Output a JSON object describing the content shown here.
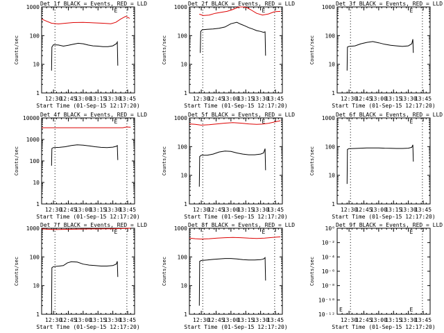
{
  "colors": {
    "events": "#000000",
    "lld": "#dd0000",
    "background": "#ffffff"
  },
  "chart_data": [
    {
      "type": "line",
      "det": "1f",
      "title": "Det 1f BLACK = Events, RED = LLD",
      "xlabel": "Start Time (01-Sep-15 12:17:20)",
      "ylabel": "Counts/sec",
      "x_ticks": [
        "12:30",
        "12:45",
        "13:00",
        "13:15",
        "13:30",
        "13:45"
      ],
      "x_tick_minutes": [
        30,
        45,
        60,
        75,
        90,
        105
      ],
      "xlim_minutes": [
        18,
        112
      ],
      "yscale": "log",
      "ylim": [
        1,
        1000
      ],
      "y_ticks": [
        "1",
        "10",
        "100",
        "1000"
      ],
      "y_tick_values": [
        1,
        10,
        100,
        1000
      ],
      "vlines_minutes": [
        31.5,
        104.2
      ],
      "e_markers_minutes": [
        93.0
      ],
      "series": [
        {
          "name": "Events",
          "color": "#000000",
          "x": [
            28.0,
            28.4,
            30,
            35,
            40,
            45,
            50,
            55,
            60,
            65,
            70,
            75,
            80,
            85,
            90,
            93.5,
            94.5,
            95.0
          ],
          "y": [
            6,
            40,
            48,
            47,
            43,
            46,
            50,
            54,
            52,
            47,
            44,
            43,
            41,
            41,
            44,
            52,
            60,
            9
          ]
        },
        {
          "name": "LLD",
          "color": "#dd0000",
          "x": [
            18,
            22,
            28,
            35,
            42,
            50,
            60,
            70,
            80,
            88,
            93,
            98,
            103,
            107
          ],
          "y": [
            380,
            330,
            270,
            255,
            270,
            285,
            290,
            280,
            270,
            260,
            290,
            380,
            470,
            400
          ]
        }
      ]
    },
    {
      "type": "line",
      "det": "2f",
      "title": "Det 2f BLACK = Events, RED = LLD",
      "xlabel": "Start Time (01-Sep-15 12:17:20)",
      "ylabel": "Counts/sec",
      "x_ticks": [
        "12:30",
        "12:45",
        "13:00",
        "13:15",
        "13:30",
        "13:45"
      ],
      "x_tick_minutes": [
        30,
        45,
        60,
        75,
        90,
        105
      ],
      "xlim_minutes": [
        18,
        112
      ],
      "yscale": "log",
      "ylim": [
        1,
        1000
      ],
      "y_ticks": [
        "1",
        "10",
        "100",
        "1000"
      ],
      "y_tick_values": [
        1,
        10,
        100,
        1000
      ],
      "vlines_minutes": [
        31.5,
        104.2
      ],
      "e_markers_minutes": [
        93.0
      ],
      "series": [
        {
          "name": "Events",
          "color": "#000000",
          "x": [
            29.0,
            29.4,
            31,
            36,
            42,
            48,
            54,
            60,
            66,
            70,
            74,
            78,
            82,
            86,
            90,
            93,
            94.5,
            95.0
          ],
          "y": [
            25,
            140,
            160,
            165,
            170,
            180,
            200,
            260,
            290,
            250,
            220,
            190,
            170,
            150,
            140,
            130,
            135,
            20
          ]
        },
        {
          "name": "LLD",
          "color": "#dd0000",
          "x": [
            28,
            32,
            38,
            44,
            50,
            56,
            62,
            68,
            72,
            76,
            80,
            86,
            92,
            98,
            104,
            110
          ],
          "y": [
            560,
            500,
            520,
            600,
            650,
            700,
            820,
            1000,
            1050,
            950,
            800,
            600,
            520,
            570,
            680,
            700
          ]
        }
      ]
    },
    {
      "type": "line",
      "det": "3f",
      "title": "Det 3f BLACK = Events, RED = LLD",
      "xlabel": "Start Time (01-Sep-15 12:17:20)",
      "ylabel": "Counts/sec",
      "x_ticks": [
        "12:30",
        "12:45",
        "13:00",
        "13:15",
        "13:30",
        "13:45"
      ],
      "x_tick_minutes": [
        30,
        45,
        60,
        75,
        90,
        105
      ],
      "xlim_minutes": [
        18,
        112
      ],
      "yscale": "log",
      "ylim": [
        1,
        1000
      ],
      "y_ticks": [
        "1",
        "10",
        "100",
        "1000"
      ],
      "y_tick_values": [
        1,
        10,
        100,
        1000
      ],
      "vlines_minutes": [
        31.5,
        104.2
      ],
      "e_markers_minutes": [
        93.0
      ],
      "series": [
        {
          "name": "Events",
          "color": "#000000",
          "x": [
            28.0,
            28.4,
            30,
            36,
            42,
            48,
            54,
            60,
            66,
            72,
            78,
            84,
            90,
            93.5,
            94.5,
            95.0
          ],
          "y": [
            6,
            40,
            42,
            44,
            52,
            58,
            62,
            56,
            50,
            46,
            44,
            42,
            44,
            52,
            75,
            25
          ]
        }
      ]
    },
    {
      "type": "line",
      "det": "4f",
      "title": "Det 4f BLACK = Events, RED = LLD",
      "xlabel": "Start Time (01-Sep-15 12:17:20)",
      "ylabel": "Counts/sec",
      "x_ticks": [
        "12:30",
        "12:45",
        "13:00",
        "13:15",
        "13:30",
        "13:45"
      ],
      "x_tick_minutes": [
        30,
        45,
        60,
        75,
        90,
        105
      ],
      "xlim_minutes": [
        18,
        112
      ],
      "yscale": "log",
      "ylim": [
        1,
        10000
      ],
      "y_ticks": [
        "1",
        "10",
        "100",
        "1000",
        "10000"
      ],
      "y_tick_values": [
        1,
        10,
        100,
        1000,
        10000
      ],
      "vlines_minutes": [
        31.5,
        104.2
      ],
      "e_markers_minutes": [
        93.0
      ],
      "series": [
        {
          "name": "Events",
          "color": "#000000",
          "x": [
            28.0,
            28.4,
            30,
            36,
            42,
            48,
            54,
            60,
            66,
            72,
            78,
            84,
            90,
            93.5,
            94.5,
            95.0
          ],
          "y": [
            60,
            380,
            420,
            430,
            460,
            520,
            560,
            540,
            500,
            460,
            430,
            420,
            440,
            480,
            520,
            110
          ]
        },
        {
          "name": "LLD",
          "color": "#dd0000",
          "x": [
            18,
            30,
            45,
            60,
            75,
            90,
            100,
            104,
            108
          ],
          "y": [
            3500,
            3500,
            3500,
            3500,
            3500,
            3500,
            3500,
            3800,
            3700
          ]
        }
      ]
    },
    {
      "type": "line",
      "det": "5f",
      "title": "Det 5f BLACK = Events, RED = LLD",
      "xlabel": "Start Time (01-Sep-15 12:17:20)",
      "ylabel": "Counts/sec",
      "x_ticks": [
        "12:30",
        "12:45",
        "13:00",
        "13:15",
        "13:30",
        "13:45"
      ],
      "x_tick_minutes": [
        30,
        45,
        60,
        75,
        90,
        105
      ],
      "xlim_minutes": [
        18,
        112
      ],
      "yscale": "log",
      "ylim": [
        1,
        1000
      ],
      "y_ticks": [
        "1",
        "10",
        "100",
        "1000"
      ],
      "y_tick_values": [
        1,
        10,
        100,
        1000
      ],
      "vlines_minutes": [
        31.5,
        104.2
      ],
      "e_markers_minutes": [
        93.0
      ],
      "series": [
        {
          "name": "Events",
          "color": "#000000",
          "x": [
            28.0,
            28.4,
            30,
            36,
            42,
            48,
            54,
            60,
            66,
            72,
            78,
            84,
            90,
            93,
            94.5,
            95.0
          ],
          "y": [
            4,
            45,
            50,
            50,
            55,
            65,
            70,
            68,
            60,
            55,
            52,
            52,
            55,
            60,
            85,
            15
          ]
        },
        {
          "name": "LLD",
          "color": "#dd0000",
          "x": [
            18,
            24,
            30,
            38,
            46,
            54,
            62,
            70,
            78,
            86,
            92,
            98,
            104,
            110
          ],
          "y": [
            620,
            600,
            560,
            580,
            620,
            660,
            690,
            660,
            620,
            600,
            610,
            650,
            720,
            800
          ]
        }
      ]
    },
    {
      "type": "line",
      "det": "6f",
      "title": "Det 6f BLACK = Events, RED = LLD",
      "xlabel": "Start Time (01-Sep-15 12:17:20)",
      "ylabel": "Counts/sec",
      "x_ticks": [
        "12:30",
        "12:45",
        "13:00",
        "13:15",
        "13:30",
        "13:45"
      ],
      "x_tick_minutes": [
        30,
        45,
        60,
        75,
        90,
        105
      ],
      "xlim_minutes": [
        18,
        112
      ],
      "yscale": "log",
      "ylim": [
        1,
        1000
      ],
      "y_ticks": [
        "1",
        "10",
        "100",
        "1000"
      ],
      "y_tick_values": [
        1,
        10,
        100,
        1000
      ],
      "vlines_minutes": [
        31.5,
        104.2
      ],
      "e_markers_minutes": [
        93.0
      ],
      "series": [
        {
          "name": "Events",
          "color": "#000000",
          "x": [
            28.0,
            28.4,
            30,
            36,
            42,
            48,
            54,
            60,
            66,
            72,
            78,
            84,
            90,
            93.5,
            94.5,
            95.0
          ],
          "y": [
            5,
            80,
            85,
            86,
            88,
            90,
            90,
            90,
            88,
            87,
            86,
            86,
            88,
            95,
            115,
            30
          ]
        }
      ]
    },
    {
      "type": "line",
      "det": "7f",
      "title": "Det 7f BLACK = Events, RED = LLD",
      "xlabel": "Start Time (01-Sep-15 12:17:20)",
      "ylabel": "Counts/sec",
      "x_ticks": [
        "12:30",
        "12:45",
        "13:00",
        "13:15",
        "13:30",
        "13:45"
      ],
      "x_tick_minutes": [
        30,
        45,
        60,
        75,
        90,
        105
      ],
      "xlim_minutes": [
        18,
        112
      ],
      "yscale": "log",
      "ylim": [
        1,
        1000
      ],
      "y_ticks": [
        "1",
        "10",
        "100",
        "1000"
      ],
      "y_tick_values": [
        1,
        10,
        100,
        1000
      ],
      "vlines_minutes": [
        31.5,
        104.2
      ],
      "e_markers_minutes": [
        93.0
      ],
      "series": [
        {
          "name": "Events",
          "color": "#000000",
          "x": [
            28.0,
            28.4,
            30,
            36,
            40,
            44,
            48,
            54,
            60,
            66,
            72,
            78,
            84,
            90,
            93.5,
            94.5,
            95.0
          ],
          "y": [
            1,
            42,
            46,
            48,
            50,
            62,
            68,
            66,
            56,
            52,
            50,
            48,
            48,
            50,
            56,
            70,
            20
          ]
        },
        {
          "name": "LLD",
          "color": "#dd0000",
          "x": [
            18,
            30,
            45,
            60,
            75,
            90,
            100,
            108
          ],
          "y": [
            950,
            900,
            920,
            940,
            950,
            960,
            980,
            1000
          ]
        }
      ]
    },
    {
      "type": "line",
      "det": "8f",
      "title": "Det 8f BLACK = Events, RED = LLD",
      "xlabel": "Start Time (01-Sep-15 12:17:20)",
      "ylabel": "Counts/sec",
      "x_ticks": [
        "12:30",
        "12:45",
        "13:00",
        "13:15",
        "13:30",
        "13:45"
      ],
      "x_tick_minutes": [
        30,
        45,
        60,
        75,
        90,
        105
      ],
      "xlim_minutes": [
        18,
        112
      ],
      "yscale": "log",
      "ylim": [
        1,
        1000
      ],
      "y_ticks": [
        "1",
        "10",
        "100",
        "1000"
      ],
      "y_tick_values": [
        1,
        10,
        100,
        1000
      ],
      "vlines_minutes": [
        31.5,
        104.2
      ],
      "e_markers_minutes": [
        93.0
      ],
      "series": [
        {
          "name": "Events",
          "color": "#000000",
          "x": [
            28.0,
            28.4,
            30,
            36,
            42,
            48,
            54,
            60,
            66,
            72,
            78,
            84,
            90,
            93,
            94.5,
            95.0
          ],
          "y": [
            2,
            70,
            75,
            78,
            82,
            85,
            88,
            88,
            85,
            80,
            78,
            78,
            80,
            85,
            95,
            15
          ]
        },
        {
          "name": "LLD",
          "color": "#dd0000",
          "x": [
            18,
            24,
            30,
            38,
            46,
            54,
            62,
            70,
            78,
            86,
            94,
            102,
            110
          ],
          "y": [
            450,
            430,
            420,
            430,
            450,
            470,
            480,
            470,
            450,
            440,
            450,
            480,
            500
          ]
        }
      ]
    },
    {
      "type": "line",
      "det": "9f",
      "title": "Det 9f BLACK = Events, RED = LLD",
      "xlabel": "Start Time (01-Sep-15 12:17:20)",
      "ylabel": "Counts/sec",
      "x_ticks": [
        "12:30",
        "12:45",
        "13:00",
        "13:15",
        "13:30",
        "13:45"
      ],
      "x_tick_minutes": [
        30,
        45,
        60,
        75,
        90,
        105
      ],
      "xlim_minutes": [
        18,
        112
      ],
      "yscale": "log",
      "ylim": [
        1e-12,
        1
      ],
      "y_ticks": [
        "10⁻¹²",
        "10⁻¹⁰",
        "10⁻⁸",
        "10⁻⁶",
        "10⁻⁴",
        "10⁻²",
        "10⁰"
      ],
      "y_tick_values": [
        1e-12,
        1e-10,
        1e-08,
        1e-06,
        0.0001,
        0.01,
        1
      ],
      "vlines_minutes": [
        31.5,
        104.2
      ],
      "e_markers_minutes": [
        93.0
      ],
      "series": []
    }
  ]
}
